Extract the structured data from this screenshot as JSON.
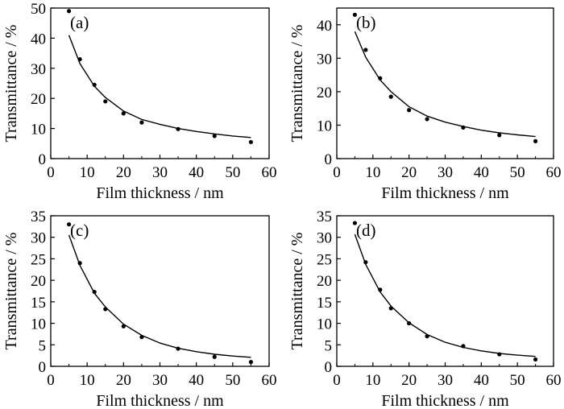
{
  "chart_data": [
    {
      "type": "scatter",
      "panel_label": "(a)",
      "xlabel": "Film thickness / nm",
      "ylabel": "Transmittance / %",
      "xlim": [
        0,
        60
      ],
      "ylim": [
        0,
        50
      ],
      "xticks": [
        0,
        10,
        20,
        30,
        40,
        50,
        60
      ],
      "yticks": [
        0,
        10,
        20,
        30,
        40,
        50
      ],
      "grid": false,
      "points": {
        "x": [
          5,
          8,
          12,
          15,
          20,
          25,
          35,
          45,
          55
        ],
        "y": [
          49,
          33,
          24.5,
          19,
          15,
          12,
          9.8,
          7.5,
          5.5
        ]
      },
      "fit": {
        "x": [
          5,
          8,
          12,
          15,
          20,
          25,
          30,
          35,
          40,
          45,
          50,
          55
        ],
        "y": [
          41,
          31.6,
          24,
          20.3,
          15.8,
          13,
          11.4,
          10,
          9,
          8.2,
          7.5,
          7
        ]
      }
    },
    {
      "type": "scatter",
      "panel_label": "(b)",
      "xlabel": "Film thickness / nm",
      "ylabel": "Transmittance / %",
      "xlim": [
        0,
        60
      ],
      "ylim": [
        0,
        45
      ],
      "xticks": [
        0,
        10,
        20,
        30,
        40,
        50,
        60
      ],
      "yticks": [
        0,
        10,
        20,
        30,
        40
      ],
      "grid": false,
      "points": {
        "x": [
          5,
          8,
          12,
          15,
          20,
          25,
          35,
          45,
          55
        ],
        "y": [
          43,
          32.5,
          24,
          18.5,
          14.5,
          11.8,
          9.3,
          7,
          5.2
        ]
      },
      "fit": {
        "x": [
          5,
          8,
          12,
          15,
          20,
          25,
          30,
          35,
          40,
          45,
          50,
          55
        ],
        "y": [
          38,
          30.3,
          23.5,
          20,
          15.5,
          12.7,
          10.9,
          9.6,
          8.5,
          7.7,
          7.1,
          6.6
        ]
      }
    },
    {
      "type": "scatter",
      "panel_label": "(c)",
      "xlabel": "Film thickness / nm",
      "ylabel": "Transmittance / %",
      "xlim": [
        0,
        60
      ],
      "ylim": [
        0,
        35
      ],
      "xticks": [
        0,
        10,
        20,
        30,
        40,
        50,
        60
      ],
      "yticks": [
        0,
        5,
        10,
        15,
        20,
        25,
        30,
        35
      ],
      "grid": false,
      "points": {
        "x": [
          5,
          8,
          12,
          15,
          20,
          25,
          35,
          45,
          55
        ],
        "y": [
          33,
          24,
          17.3,
          13.3,
          9.3,
          6.8,
          4.1,
          2.2,
          1
        ]
      },
      "fit": {
        "x": [
          5,
          8,
          12,
          15,
          20,
          25,
          30,
          35,
          40,
          45,
          50,
          55
        ],
        "y": [
          30.5,
          23.5,
          17,
          13.8,
          9.8,
          7.2,
          5.4,
          4.2,
          3.4,
          2.8,
          2.4,
          2.1
        ]
      }
    },
    {
      "type": "scatter",
      "panel_label": "(d)",
      "xlabel": "Film thickness / nm",
      "ylabel": "Transmittance / %",
      "xlim": [
        0,
        60
      ],
      "ylim": [
        0,
        35
      ],
      "xticks": [
        0,
        10,
        20,
        30,
        40,
        50,
        60
      ],
      "yticks": [
        0,
        5,
        10,
        15,
        20,
        25,
        30,
        35
      ],
      "grid": false,
      "points": {
        "x": [
          5,
          8,
          12,
          15,
          20,
          25,
          35,
          45,
          55
        ],
        "y": [
          33.3,
          24.2,
          17.8,
          13.5,
          10,
          7,
          4.7,
          2.8,
          1.6
        ]
      },
      "fit": {
        "x": [
          5,
          8,
          12,
          15,
          20,
          25,
          30,
          35,
          40,
          45,
          50,
          55
        ],
        "y": [
          30.7,
          23.7,
          17.3,
          14,
          10.1,
          7.4,
          5.6,
          4.4,
          3.6,
          3,
          2.6,
          2.3
        ]
      }
    }
  ]
}
